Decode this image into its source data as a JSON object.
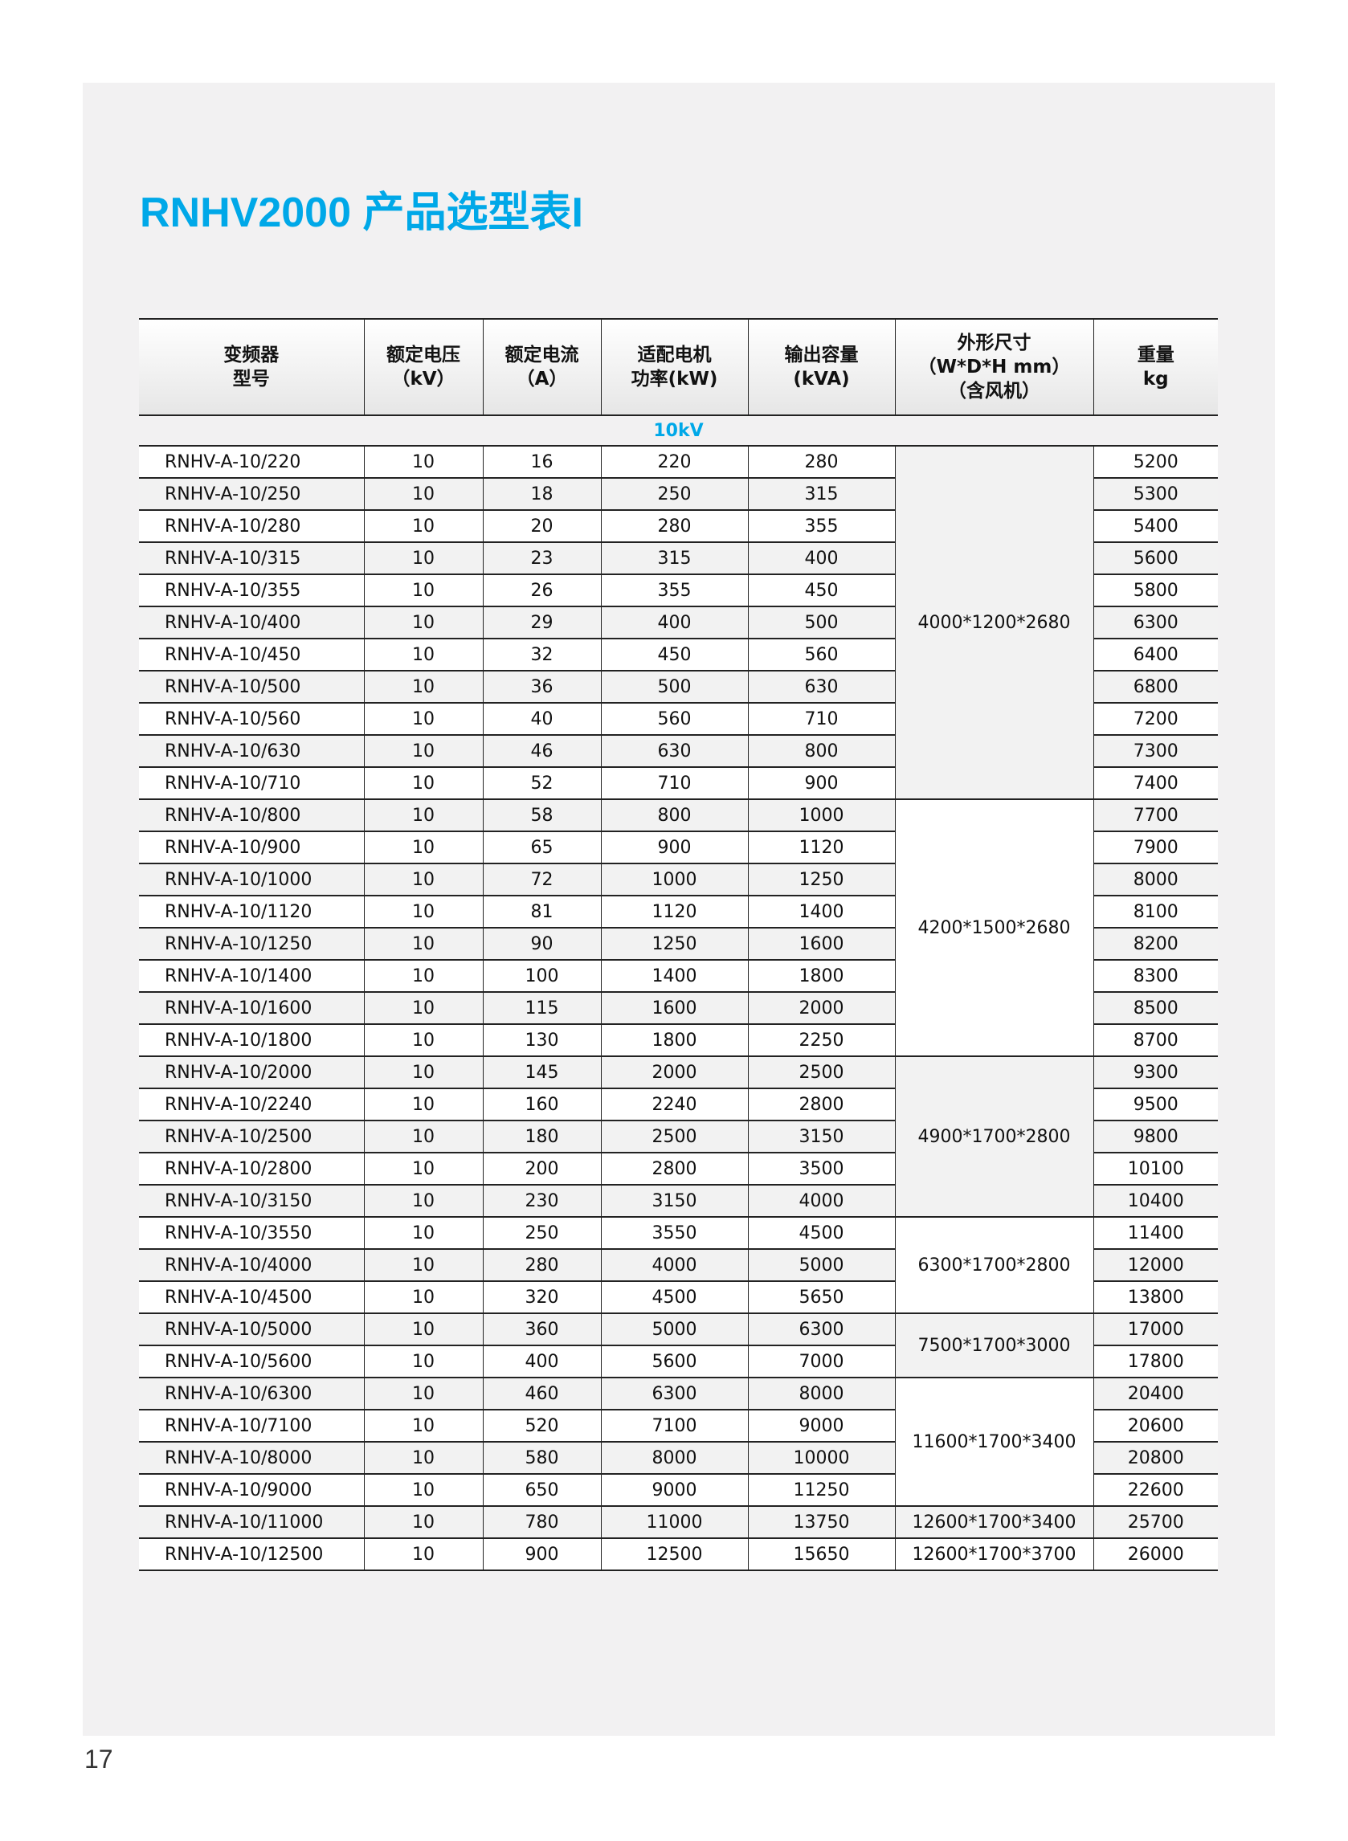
{
  "title": "RNHV2000 产品选型表I",
  "page_number": "17",
  "accent_color": "#00a8e8",
  "table": {
    "headers": [
      [
        "变频器",
        "型号"
      ],
      [
        "额定电压",
        "（kV）"
      ],
      [
        "额定电流",
        "（A）"
      ],
      [
        "适配电机",
        "功率(kW)"
      ],
      [
        "输出容量",
        "(kVA)"
      ],
      [
        "外形尺寸",
        "（W*D*H mm）",
        "（含风机）"
      ],
      [
        "重量",
        "kg"
      ]
    ],
    "section_label": "10kV",
    "rows": [
      [
        "RNHV-A-10/220",
        "10",
        "16",
        "220",
        "280",
        "5200"
      ],
      [
        "RNHV-A-10/250",
        "10",
        "18",
        "250",
        "315",
        "5300"
      ],
      [
        "RNHV-A-10/280",
        "10",
        "20",
        "280",
        "355",
        "5400"
      ],
      [
        "RNHV-A-10/315",
        "10",
        "23",
        "315",
        "400",
        "5600"
      ],
      [
        "RNHV-A-10/355",
        "10",
        "26",
        "355",
        "450",
        "5800"
      ],
      [
        "RNHV-A-10/400",
        "10",
        "29",
        "400",
        "500",
        "6300"
      ],
      [
        "RNHV-A-10/450",
        "10",
        "32",
        "450",
        "560",
        "6400"
      ],
      [
        "RNHV-A-10/500",
        "10",
        "36",
        "500",
        "630",
        "6800"
      ],
      [
        "RNHV-A-10/560",
        "10",
        "40",
        "560",
        "710",
        "7200"
      ],
      [
        "RNHV-A-10/630",
        "10",
        "46",
        "630",
        "800",
        "7300"
      ],
      [
        "RNHV-A-10/710",
        "10",
        "52",
        "710",
        "900",
        "7400"
      ],
      [
        "RNHV-A-10/800",
        "10",
        "58",
        "800",
        "1000",
        "7700"
      ],
      [
        "RNHV-A-10/900",
        "10",
        "65",
        "900",
        "1120",
        "7900"
      ],
      [
        "RNHV-A-10/1000",
        "10",
        "72",
        "1000",
        "1250",
        "8000"
      ],
      [
        "RNHV-A-10/1120",
        "10",
        "81",
        "1120",
        "1400",
        "8100"
      ],
      [
        "RNHV-A-10/1250",
        "10",
        "90",
        "1250",
        "1600",
        "8200"
      ],
      [
        "RNHV-A-10/1400",
        "10",
        "100",
        "1400",
        "1800",
        "8300"
      ],
      [
        "RNHV-A-10/1600",
        "10",
        "115",
        "1600",
        "2000",
        "8500"
      ],
      [
        "RNHV-A-10/1800",
        "10",
        "130",
        "1800",
        "2250",
        "8700"
      ],
      [
        "RNHV-A-10/2000",
        "10",
        "145",
        "2000",
        "2500",
        "9300"
      ],
      [
        "RNHV-A-10/2240",
        "10",
        "160",
        "2240",
        "2800",
        "9500"
      ],
      [
        "RNHV-A-10/2500",
        "10",
        "180",
        "2500",
        "3150",
        "9800"
      ],
      [
        "RNHV-A-10/2800",
        "10",
        "200",
        "2800",
        "3500",
        "10100"
      ],
      [
        "RNHV-A-10/3150",
        "10",
        "230",
        "3150",
        "4000",
        "10400"
      ],
      [
        "RNHV-A-10/3550",
        "10",
        "250",
        "3550",
        "4500",
        "11400"
      ],
      [
        "RNHV-A-10/4000",
        "10",
        "280",
        "4000",
        "5000",
        "12000"
      ],
      [
        "RNHV-A-10/4500",
        "10",
        "320",
        "4500",
        "5650",
        "13800"
      ],
      [
        "RNHV-A-10/5000",
        "10",
        "360",
        "5000",
        "6300",
        "17000"
      ],
      [
        "RNHV-A-10/5600",
        "10",
        "400",
        "5600",
        "7000",
        "17800"
      ],
      [
        "RNHV-A-10/6300",
        "10",
        "460",
        "6300",
        "8000",
        "20400"
      ],
      [
        "RNHV-A-10/7100",
        "10",
        "520",
        "7100",
        "9000",
        "20600"
      ],
      [
        "RNHV-A-10/8000",
        "10",
        "580",
        "8000",
        "10000",
        "20800"
      ],
      [
        "RNHV-A-10/9000",
        "10",
        "650",
        "9000",
        "11250",
        "22600"
      ],
      [
        "RNHV-A-10/11000",
        "10",
        "780",
        "11000",
        "13750",
        "25700"
      ],
      [
        "RNHV-A-10/12500",
        "10",
        "900",
        "12500",
        "15650",
        "26000"
      ]
    ],
    "dimension_groups": [
      {
        "value": "4000*1200*2680",
        "rows": 11
      },
      {
        "value": "4200*1500*2680",
        "rows": 8
      },
      {
        "value": "4900*1700*2800",
        "rows": 5
      },
      {
        "value": "6300*1700*2800",
        "rows": 3
      },
      {
        "value": "7500*1700*3000",
        "rows": 2
      },
      {
        "value": "11600*1700*3400",
        "rows": 4
      },
      {
        "value": "12600*1700*3400",
        "rows": 1
      },
      {
        "value": "12600*1700*3700",
        "rows": 1
      }
    ]
  }
}
